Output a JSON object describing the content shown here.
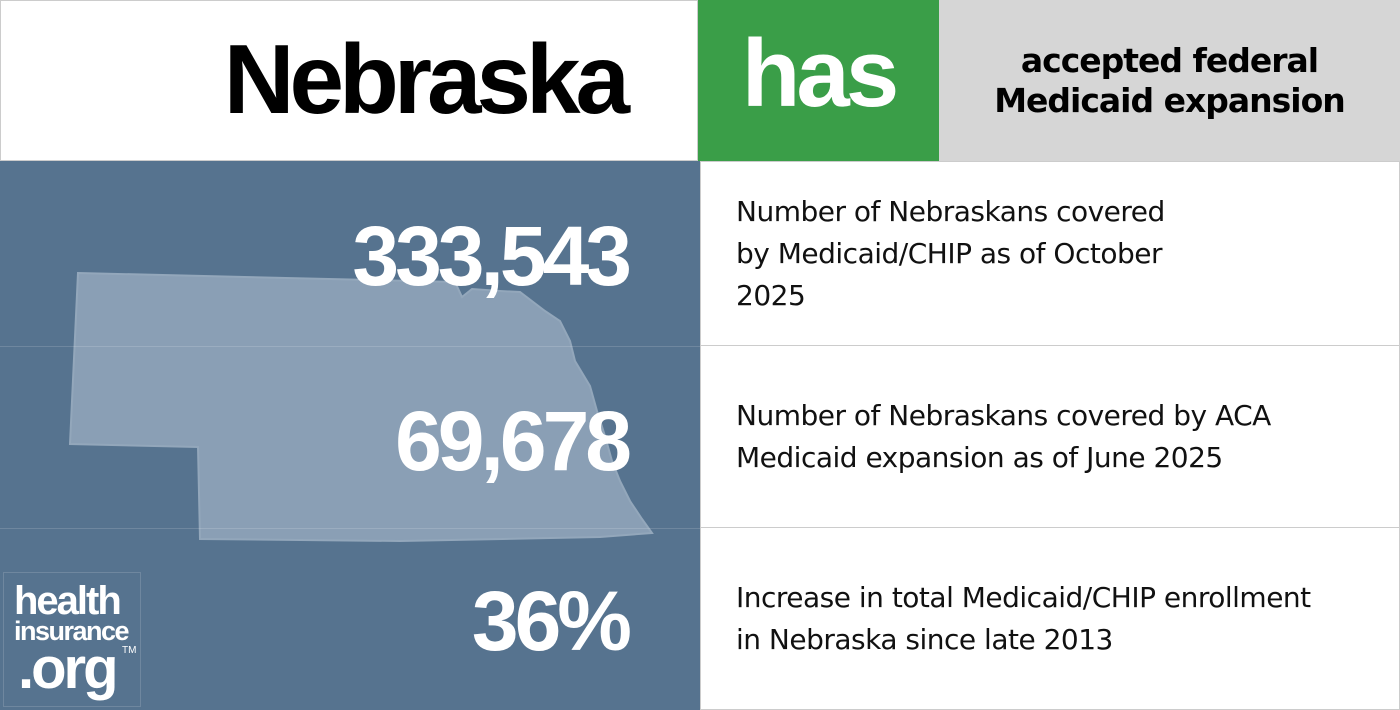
{
  "header": {
    "state": "Nebraska",
    "status_word": "has",
    "status_text": "accepted federal Medicaid expansion",
    "status_color": "#3a9e48"
  },
  "stats": [
    {
      "value": "333,543",
      "description": "Number of Nebraskans covered by Medicaid/CHIP as of October 2025"
    },
    {
      "value": "69,678",
      "description": "Number of Nebraskans covered by ACA Medicaid expansion as of June 2025"
    },
    {
      "value": "36%",
      "description": "Increase in total Medicaid/CHIP enrollment in Nebraska since late 2013"
    }
  ],
  "logo": {
    "line1": "health",
    "line2": "insurance",
    "line3": ".org",
    "tm": "TM"
  },
  "colors": {
    "panel": "#56738f",
    "state_shape": "#8a9fb5",
    "status_bg": "#d6d6d6"
  }
}
